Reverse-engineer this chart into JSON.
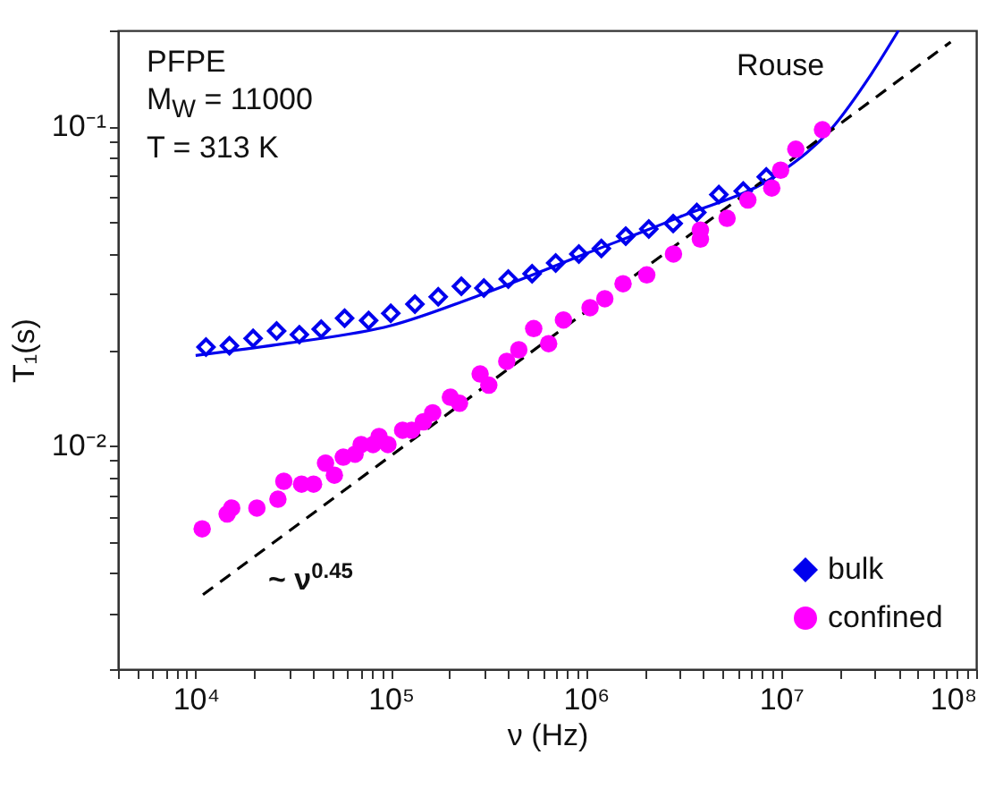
{
  "chart_data": {
    "type": "scatter",
    "xlabel": "ν (Hz)",
    "ylabel": "T₁(s)",
    "log": "xy",
    "grid": false,
    "legend": "bottom right",
    "xlim": [
      4000,
      100000000
    ],
    "ylim": [
      0.002,
      0.2
    ],
    "xticks": [
      {
        "value": 4000,
        "label": null
      },
      {
        "value": 5000,
        "label": null
      },
      {
        "value": 6000,
        "label": null
      },
      {
        "value": 7000,
        "label": null
      },
      {
        "value": 8000,
        "label": null
      },
      {
        "value": 9000,
        "label": null
      },
      {
        "value": 10000,
        "label": "10⁴"
      },
      {
        "value": 20000,
        "label": null
      },
      {
        "value": 30000,
        "label": null
      },
      {
        "value": 40000,
        "label": null
      },
      {
        "value": 50000,
        "label": null
      },
      {
        "value": 60000,
        "label": null
      },
      {
        "value": 70000,
        "label": null
      },
      {
        "value": 80000,
        "label": null
      },
      {
        "value": 90000,
        "label": null
      },
      {
        "value": 100000,
        "label": "10⁵"
      },
      {
        "value": 200000,
        "label": null
      },
      {
        "value": 300000,
        "label": null
      },
      {
        "value": 400000,
        "label": null
      },
      {
        "value": 500000,
        "label": null
      },
      {
        "value": 600000,
        "label": null
      },
      {
        "value": 700000,
        "label": null
      },
      {
        "value": 800000,
        "label": null
      },
      {
        "value": 900000,
        "label": null
      },
      {
        "value": 1000000,
        "label": "10⁶"
      },
      {
        "value": 2000000,
        "label": null
      },
      {
        "value": 3000000,
        "label": null
      },
      {
        "value": 4000000,
        "label": null
      },
      {
        "value": 5000000,
        "label": null
      },
      {
        "value": 6000000,
        "label": null
      },
      {
        "value": 7000000,
        "label": null
      },
      {
        "value": 8000000,
        "label": null
      },
      {
        "value": 9000000,
        "label": null
      },
      {
        "value": 10000000,
        "label": "10⁷"
      },
      {
        "value": 20000000,
        "label": null
      },
      {
        "value": 30000000,
        "label": null
      },
      {
        "value": 40000000,
        "label": null
      },
      {
        "value": 50000000,
        "label": null
      },
      {
        "value": 60000000,
        "label": null
      },
      {
        "value": 70000000,
        "label": null
      },
      {
        "value": 80000000,
        "label": null
      },
      {
        "value": 90000000,
        "label": null
      },
      {
        "value": 100000000,
        "label": "10⁸"
      }
    ],
    "yticks": [
      {
        "value": 0.002,
        "label": null
      },
      {
        "value": 0.003,
        "label": null
      },
      {
        "value": 0.004,
        "label": null
      },
      {
        "value": 0.005,
        "label": null
      },
      {
        "value": 0.006,
        "label": null
      },
      {
        "value": 0.007,
        "label": null
      },
      {
        "value": 0.008,
        "label": null
      },
      {
        "value": 0.009,
        "label": null
      },
      {
        "value": 0.01,
        "label": "10⁻²"
      },
      {
        "value": 0.02,
        "label": null
      },
      {
        "value": 0.03,
        "label": null
      },
      {
        "value": 0.04,
        "label": null
      },
      {
        "value": 0.05,
        "label": null
      },
      {
        "value": 0.06,
        "label": null
      },
      {
        "value": 0.07,
        "label": null
      },
      {
        "value": 0.08,
        "label": null
      },
      {
        "value": 0.09,
        "label": null
      },
      {
        "value": 0.1,
        "label": "10⁻¹"
      },
      {
        "value": 0.2,
        "label": null
      }
    ],
    "series": [
      {
        "name": "bulk",
        "type": "scatter",
        "marker": "diamond",
        "color": "#0000ee",
        "x": [
          11300,
          14900,
          19700,
          26000,
          34000,
          44000,
          58000,
          77000,
          100000,
          133000,
          175000,
          230000,
          300000,
          400000,
          530000,
          700000,
          920000,
          1200000,
          1600000,
          2100000,
          2800000,
          3700000,
          4800000,
          6400000,
          8400000
        ],
        "values": [
          0.0204,
          0.0206,
          0.0217,
          0.0229,
          0.0223,
          0.0232,
          0.0251,
          0.0247,
          0.026,
          0.0278,
          0.0293,
          0.0316,
          0.0312,
          0.0333,
          0.0346,
          0.0374,
          0.0399,
          0.0415,
          0.0454,
          0.0478,
          0.0497,
          0.0538,
          0.0612,
          0.0628,
          0.0696
        ]
      },
      {
        "name": "confined",
        "type": "scatter",
        "marker": "circle",
        "color": "#ff00ff",
        "x": [
          10800,
          14500,
          15300,
          20600,
          26400,
          28300,
          34900,
          40200,
          46300,
          51400,
          57100,
          65600,
          70500,
          81100,
          87100,
          96700,
          115000,
          128000,
          147000,
          164000,
          202000,
          225000,
          287000,
          318000,
          393000,
          453000,
          540000,
          644000,
          767000,
          1050000,
          1250000,
          1550000,
          2050000,
          2810000,
          3860000,
          3860000,
          5290000,
          6760000,
          8960000,
          9950000,
          11900000,
          16300000
        ],
        "values": [
          0.0055,
          0.00612,
          0.00639,
          0.00639,
          0.00681,
          0.00775,
          0.00759,
          0.00759,
          0.00883,
          0.0081,
          0.00922,
          0.00942,
          0.0101,
          0.0101,
          0.0107,
          0.0101,
          0.0112,
          0.0112,
          0.0119,
          0.0127,
          0.0142,
          0.0136,
          0.0168,
          0.0155,
          0.0184,
          0.02,
          0.0233,
          0.0209,
          0.0248,
          0.0271,
          0.0289,
          0.0322,
          0.0343,
          0.0399,
          0.0444,
          0.0474,
          0.0516,
          0.0589,
          0.0642,
          0.073,
          0.0849,
          0.0977
        ]
      },
      {
        "type": "line",
        "line_style": "solid",
        "color": "#0000ee",
        "x": [
          10000,
          30000,
          100000,
          300000,
          1000000,
          3000000,
          10000000,
          18000000,
          29000000,
          40000000
        ],
        "values": [
          0.0192,
          0.021,
          0.0238,
          0.03,
          0.04,
          0.052,
          0.072,
          0.098,
          0.146,
          0.2
        ]
      },
      {
        "type": "line",
        "line_style": "dashed",
        "color": "#000000",
        "x": [
          10900,
          74000000
        ],
        "values": [
          0.00342,
          0.184
        ]
      }
    ],
    "annotations": [
      "PFPE",
      "M$_{W}$ = 11000",
      "T = 313 K",
      "Rouse",
      "~ ν$^{0.45}$"
    ]
  }
}
